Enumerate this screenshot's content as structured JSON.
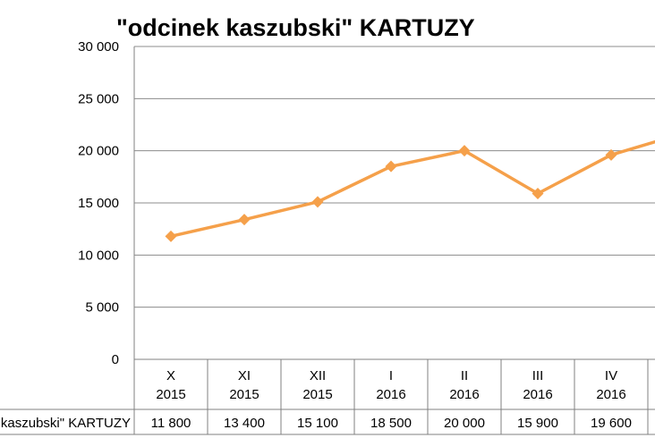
{
  "chart_data": {
    "type": "line",
    "title": "\"odcinek kaszubski\" KARTUZY",
    "series_label": "kaszubski\" KARTUZY",
    "categories": [
      [
        "X",
        "2015"
      ],
      [
        "XI",
        "2015"
      ],
      [
        "XII",
        "2015"
      ],
      [
        "I",
        "2016"
      ],
      [
        "II",
        "2016"
      ],
      [
        "III",
        "2016"
      ],
      [
        "IV",
        "2016"
      ]
    ],
    "values": [
      11800,
      13400,
      15100,
      18500,
      20000,
      15900,
      19600
    ],
    "value_labels": [
      "11 800",
      "13 400",
      "15 100",
      "18 500",
      "20 000",
      "15 900",
      "19 600"
    ],
    "partial_next_value": 21700,
    "ylim": [
      0,
      30000
    ],
    "yticks": [
      0,
      5000,
      10000,
      15000,
      20000,
      25000,
      30000
    ],
    "ytick_labels": [
      "0",
      "5 000",
      "10 000",
      "15 000",
      "20 000",
      "25 000",
      "30 000"
    ],
    "grid": true,
    "data_table": true,
    "line_color": "#F5A04A"
  }
}
